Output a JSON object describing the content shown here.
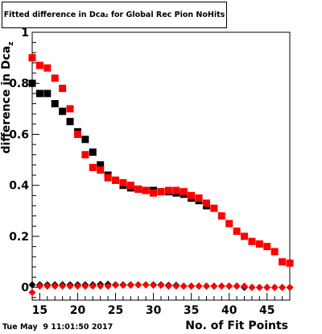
{
  "chart_data": {
    "type": "scatter",
    "title": "Fitted difference in Dca",
    "title_sub": "z",
    "title_rest": " for Global Rec Pion NoHits",
    "ylabel": "difference in Dca",
    "ylabel_sub": "z",
    "xlabel": "No. of Fit Points",
    "xlim": [
      14,
      48
    ],
    "ylim": [
      -0.05,
      1.0
    ],
    "x_ticks": [
      15,
      20,
      25,
      30,
      35,
      40,
      45
    ],
    "y_ticks": [
      0,
      0.2,
      0.4,
      0.6,
      0.8,
      1
    ],
    "y_tick_labels": [
      "0",
      "0.2",
      "0.4",
      "0.6",
      "0.8",
      "1"
    ],
    "grid": false,
    "x": [
      14,
      15,
      16,
      17,
      18,
      19,
      20,
      21,
      22,
      23,
      24,
      25,
      26,
      27,
      28,
      29,
      30,
      31,
      32,
      33,
      34,
      35,
      36,
      37,
      38,
      39,
      40,
      41,
      42,
      43,
      44,
      45,
      46,
      47,
      48
    ],
    "series": [
      {
        "color": "#000000",
        "marker": "square",
        "values": [
          0.8,
          0.76,
          0.76,
          0.72,
          0.69,
          0.65,
          0.61,
          0.58,
          0.53,
          0.48,
          0.44,
          0.42,
          0.4,
          0.39,
          0.385,
          0.38,
          0.38,
          0.375,
          0.375,
          0.37,
          0.365,
          0.35,
          0.34,
          0.32,
          null,
          null,
          null,
          null,
          null,
          null,
          null,
          null,
          null,
          null,
          null
        ]
      },
      {
        "color": "#ff0000",
        "marker": "square",
        "values": [
          0.9,
          0.87,
          0.86,
          0.82,
          0.78,
          0.7,
          0.6,
          0.52,
          0.47,
          0.46,
          0.43,
          0.42,
          0.41,
          0.4,
          0.385,
          0.38,
          0.37,
          0.375,
          0.38,
          0.38,
          0.375,
          0.36,
          0.35,
          0.33,
          0.31,
          0.28,
          0.25,
          0.22,
          0.2,
          0.18,
          0.17,
          0.16,
          0.14,
          0.1,
          0.095
        ]
      },
      {
        "color": "#000000",
        "marker": "diamond",
        "values": [
          0.01,
          0.01,
          0.01,
          0.01,
          0.01,
          0.01,
          0.01,
          0.01,
          0.01,
          0.012,
          0.012,
          0.01,
          0.01,
          0.01,
          0.01,
          0.01,
          0.01,
          0.01,
          0.008,
          0.008,
          0.005,
          0.005,
          0.005,
          0.005,
          0.005,
          0.005,
          0.005,
          0.005,
          0.0,
          0.0,
          0.0,
          0.0,
          0.0,
          0.0,
          0.0
        ]
      },
      {
        "color": "#ff0000",
        "marker": "diamond",
        "values": [
          -0.02,
          0.005,
          0.005,
          0.005,
          0.005,
          0.005,
          0.005,
          0.005,
          0.005,
          0.005,
          0.005,
          0.008,
          0.008,
          0.008,
          0.01,
          0.01,
          0.008,
          0.008,
          0.005,
          0.005,
          0.005,
          0.005,
          0.005,
          0.005,
          0.005,
          0.005,
          0.005,
          0.005,
          0.005,
          0.0,
          0.0,
          0.0,
          0.0,
          0.0,
          0.0
        ]
      }
    ]
  },
  "footer": {
    "date": "Tue May  9 11:01:50 2017"
  }
}
